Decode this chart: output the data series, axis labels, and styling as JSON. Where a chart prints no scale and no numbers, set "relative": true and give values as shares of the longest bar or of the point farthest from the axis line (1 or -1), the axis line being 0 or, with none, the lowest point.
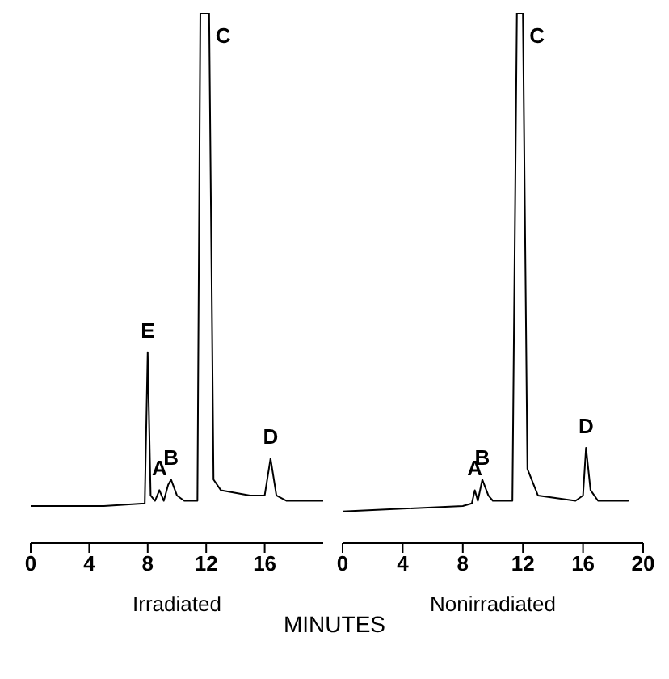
{
  "chart_data": [
    {
      "type": "line",
      "relative": true,
      "xlabel": "Irradiated",
      "xlim": [
        0,
        20
      ],
      "xticks": [
        0,
        4,
        8,
        12,
        16
      ],
      "x": [
        0,
        5,
        7.8,
        8.0,
        8.2,
        8.5,
        8.8,
        9.1,
        9.4,
        9.6,
        10,
        10.5,
        11.4,
        11.6,
        11.8,
        12.2,
        12.5,
        13,
        15,
        16,
        16.4,
        16.8,
        17.5,
        20
      ],
      "series": [
        {
          "color": "#000000",
          "values": [
            0.07,
            0.07,
            0.075,
            0.36,
            0.09,
            0.08,
            0.1,
            0.08,
            0.11,
            0.12,
            0.09,
            0.08,
            0.08,
            1,
            1,
            1,
            0.12,
            0.1,
            0.09,
            0.09,
            0.16,
            0.09,
            0.08,
            0.08
          ]
        }
      ],
      "annotations": [
        {
          "text": "E",
          "x": 8.0,
          "y": 0.36
        },
        {
          "text": "A",
          "x": 8.8,
          "y": 0.1
        },
        {
          "text": "B",
          "x": 9.6,
          "y": 0.12
        },
        {
          "text": "C",
          "x": 12.2,
          "y": 1
        },
        {
          "text": "D",
          "x": 16.4,
          "y": 0.16
        },
        "MINUTES"
      ]
    },
    {
      "type": "line",
      "relative": true,
      "xlabel": "Nonirradiated",
      "xlim": [
        0,
        20
      ],
      "xticks": [
        0,
        4,
        8,
        12,
        16,
        20
      ],
      "x": [
        0,
        4,
        8,
        8.6,
        8.8,
        9.0,
        9.3,
        9.7,
        10,
        11.3,
        11.6,
        12.0,
        12.3,
        13,
        15.5,
        16,
        16.2,
        16.5,
        17,
        19
      ],
      "series": [
        {
          "color": "#000000",
          "values": [
            0.06,
            0.065,
            0.07,
            0.075,
            0.1,
            0.08,
            0.12,
            0.09,
            0.08,
            0.08,
            1,
            1,
            0.14,
            0.09,
            0.08,
            0.09,
            0.18,
            0.1,
            0.08,
            0.08
          ]
        }
      ],
      "annotations": [
        {
          "text": "A",
          "x": 8.8,
          "y": 0.1
        },
        {
          "text": "B",
          "x": 9.3,
          "y": 0.12
        },
        {
          "text": "C",
          "x": 12.0,
          "y": 1
        },
        {
          "text": "D",
          "x": 16.2,
          "y": 0.18
        }
      ]
    }
  ]
}
